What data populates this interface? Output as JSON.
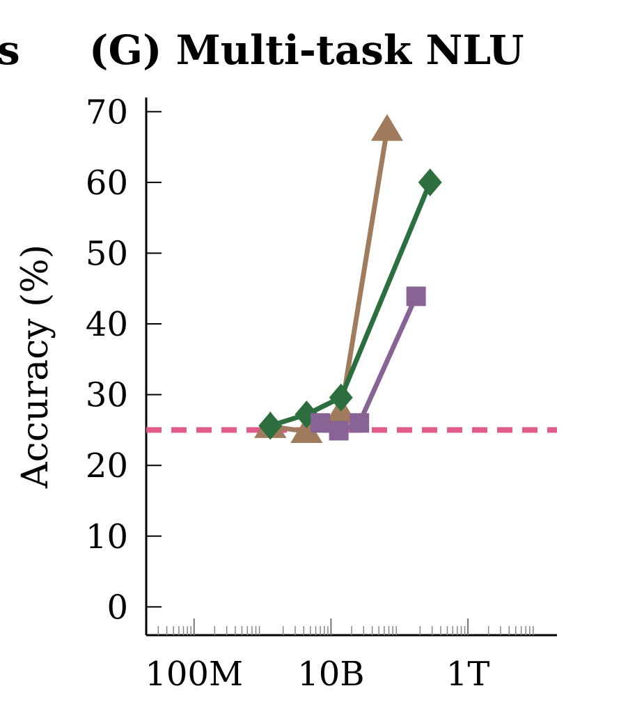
{
  "chart_data": {
    "type": "line",
    "title": "(G) Multi-task NLU",
    "title_fragment_left": "s",
    "ylabel": "Accuracy (%)",
    "xlabel": "",
    "x_scale": "log",
    "xlim": [
      20000000,
      20000000000000
    ],
    "ylim": [
      -4,
      72
    ],
    "y_ticks": [
      0,
      10,
      20,
      30,
      40,
      50,
      60,
      70
    ],
    "y_tick_labels": [
      "0",
      "10",
      "20",
      "30",
      "40",
      "50",
      "60",
      "70"
    ],
    "x_ticks": [
      100000000,
      10000000000,
      1000000000000
    ],
    "x_tick_labels": [
      "100M",
      "10B",
      "1T"
    ],
    "legend": "none",
    "grid": false,
    "reference_line": {
      "y": 25,
      "color": "#e05a8a",
      "style": "dashed"
    },
    "series": [
      {
        "marker": "triangle",
        "color": "#a07b5d",
        "x": [
          1300000000,
          4400000000,
          14000000000,
          66000000000
        ],
        "y": [
          25.5,
          24.8,
          27.5,
          67.5
        ]
      },
      {
        "marker": "diamond",
        "color": "#2d6e3e",
        "x": [
          1300000000,
          4400000000,
          14000000000,
          280000000000
        ],
        "y": [
          25.6,
          27.2,
          29.6,
          60.0
        ]
      },
      {
        "marker": "square",
        "color": "#876495",
        "x": [
          7000000000,
          13000000000,
          26000000000,
          175000000000
        ],
        "y": [
          26.0,
          24.9,
          26.0,
          43.9
        ]
      }
    ]
  }
}
